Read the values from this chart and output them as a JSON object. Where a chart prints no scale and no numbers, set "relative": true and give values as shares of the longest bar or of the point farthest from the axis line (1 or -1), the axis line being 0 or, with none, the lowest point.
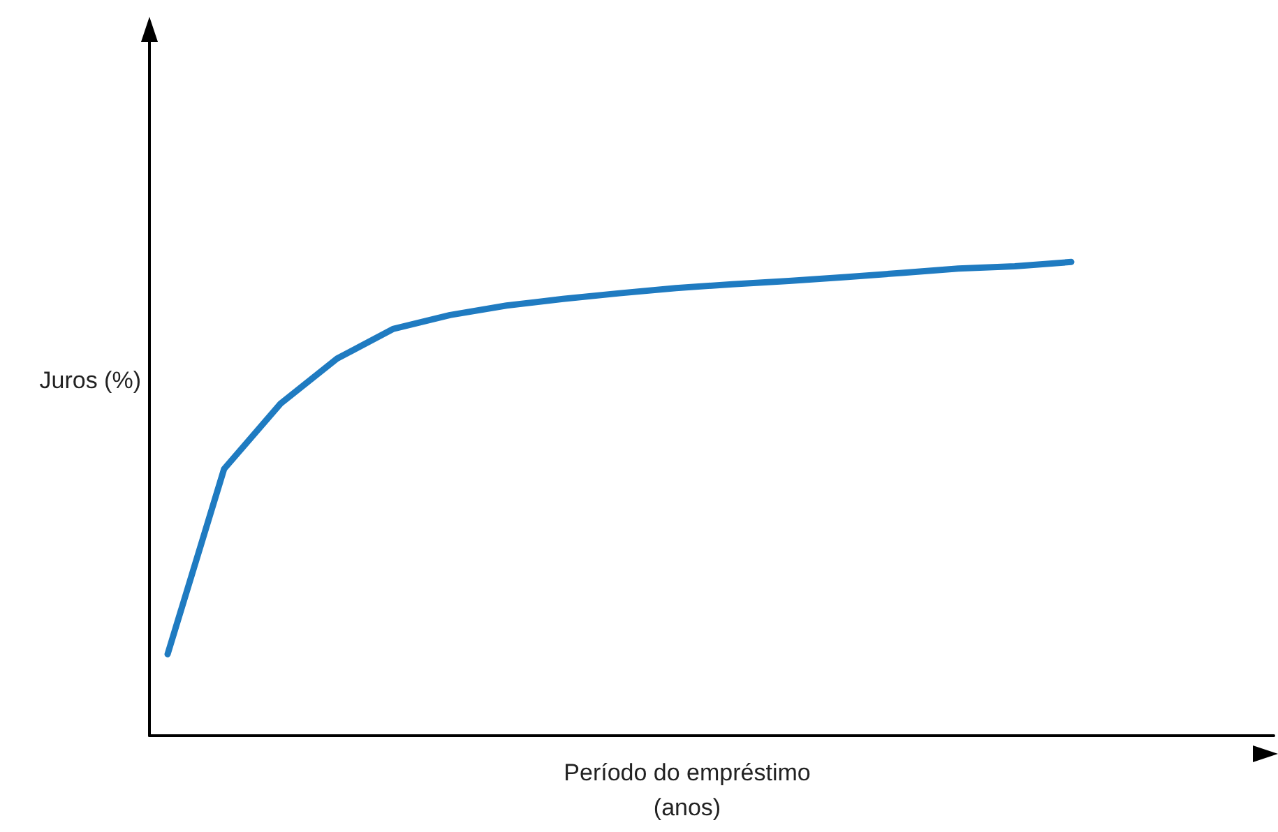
{
  "chart_data": {
    "type": "line",
    "xlabel": "Período do empréstimo\n(anos)",
    "ylabel": "Juros (%)",
    "relative": true,
    "categories": [
      null,
      null,
      null,
      null,
      null,
      null,
      null,
      null,
      null,
      null,
      null,
      null,
      null,
      null,
      null,
      null,
      null
    ],
    "series": [
      {
        "color": "#1f7bc1",
        "values": [
          0.172,
          0.563,
          0.701,
          0.796,
          0.859,
          0.888,
          0.908,
          0.922,
          0.934,
          0.945,
          0.953,
          0.96,
          0.968,
          0.977,
          0.986,
          0.991,
          1
        ]
      }
    ],
    "marker": "none",
    "line_style": "solid",
    "grid": false
  }
}
